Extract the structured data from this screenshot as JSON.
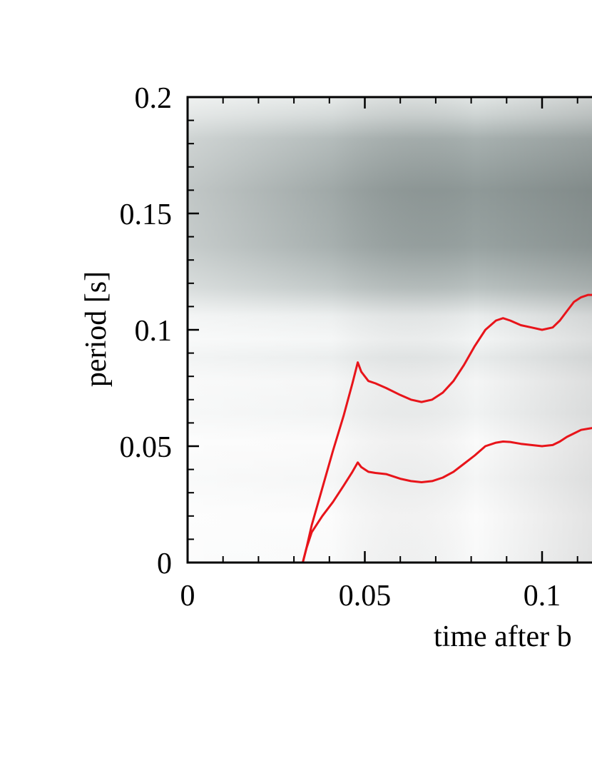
{
  "chart_data": {
    "type": "heatmap",
    "title": "",
    "xlabel": "time after b",
    "ylabel": "period [s]",
    "xlim": [
      0,
      0.115
    ],
    "ylim": [
      0,
      0.2
    ],
    "x_ticks": [
      {
        "value": 0,
        "label": "0"
      },
      {
        "value": 0.05,
        "label": "0.05"
      },
      {
        "value": 0.1,
        "label": "0.1"
      }
    ],
    "y_ticks": [
      {
        "value": 0,
        "label": "0"
      },
      {
        "value": 0.05,
        "label": "0.05"
      },
      {
        "value": 0.1,
        "label": "0.1"
      },
      {
        "value": 0.15,
        "label": "0.15"
      },
      {
        "value": 0.2,
        "label": "0.2"
      }
    ],
    "x_minor_step": 0.01,
    "y_minor_step": 0.01,
    "grid": false,
    "background_colormap": "grayscale (white = low, gray = high)",
    "series": [
      {
        "color": "#e8141a",
        "x": [
          0.0325,
          0.0335,
          0.035,
          0.038,
          0.041,
          0.044,
          0.0465,
          0.048,
          0.049,
          0.051,
          0.053,
          0.056,
          0.06,
          0.063,
          0.066,
          0.069,
          0.072,
          0.075,
          0.078,
          0.081,
          0.084,
          0.087,
          0.089,
          0.091,
          0.094,
          0.097,
          0.1,
          0.103,
          0.105,
          0.107,
          0.109,
          0.111,
          0.113,
          0.115
        ],
        "y": [
          0.0,
          0.006,
          0.016,
          0.032,
          0.048,
          0.063,
          0.077,
          0.086,
          0.082,
          0.078,
          0.077,
          0.075,
          0.072,
          0.07,
          0.069,
          0.07,
          0.073,
          0.078,
          0.085,
          0.093,
          0.1,
          0.104,
          0.105,
          0.104,
          0.102,
          0.101,
          0.1,
          0.101,
          0.104,
          0.108,
          0.112,
          0.114,
          0.115,
          0.115
        ]
      },
      {
        "color": "#e8141a",
        "x": [
          0.0325,
          0.0335,
          0.035,
          0.038,
          0.041,
          0.044,
          0.0465,
          0.048,
          0.049,
          0.051,
          0.053,
          0.056,
          0.06,
          0.063,
          0.066,
          0.069,
          0.072,
          0.075,
          0.078,
          0.081,
          0.084,
          0.087,
          0.089,
          0.091,
          0.094,
          0.097,
          0.1,
          0.103,
          0.105,
          0.107,
          0.109,
          0.111,
          0.113,
          0.115
        ],
        "y": [
          0.0,
          0.006,
          0.013,
          0.02,
          0.026,
          0.033,
          0.039,
          0.043,
          0.041,
          0.039,
          0.0385,
          0.038,
          0.036,
          0.035,
          0.0345,
          0.035,
          0.0365,
          0.039,
          0.0425,
          0.046,
          0.05,
          0.0515,
          0.052,
          0.0518,
          0.051,
          0.0505,
          0.05,
          0.0505,
          0.052,
          0.054,
          0.0555,
          0.057,
          0.0575,
          0.058
        ]
      }
    ]
  }
}
